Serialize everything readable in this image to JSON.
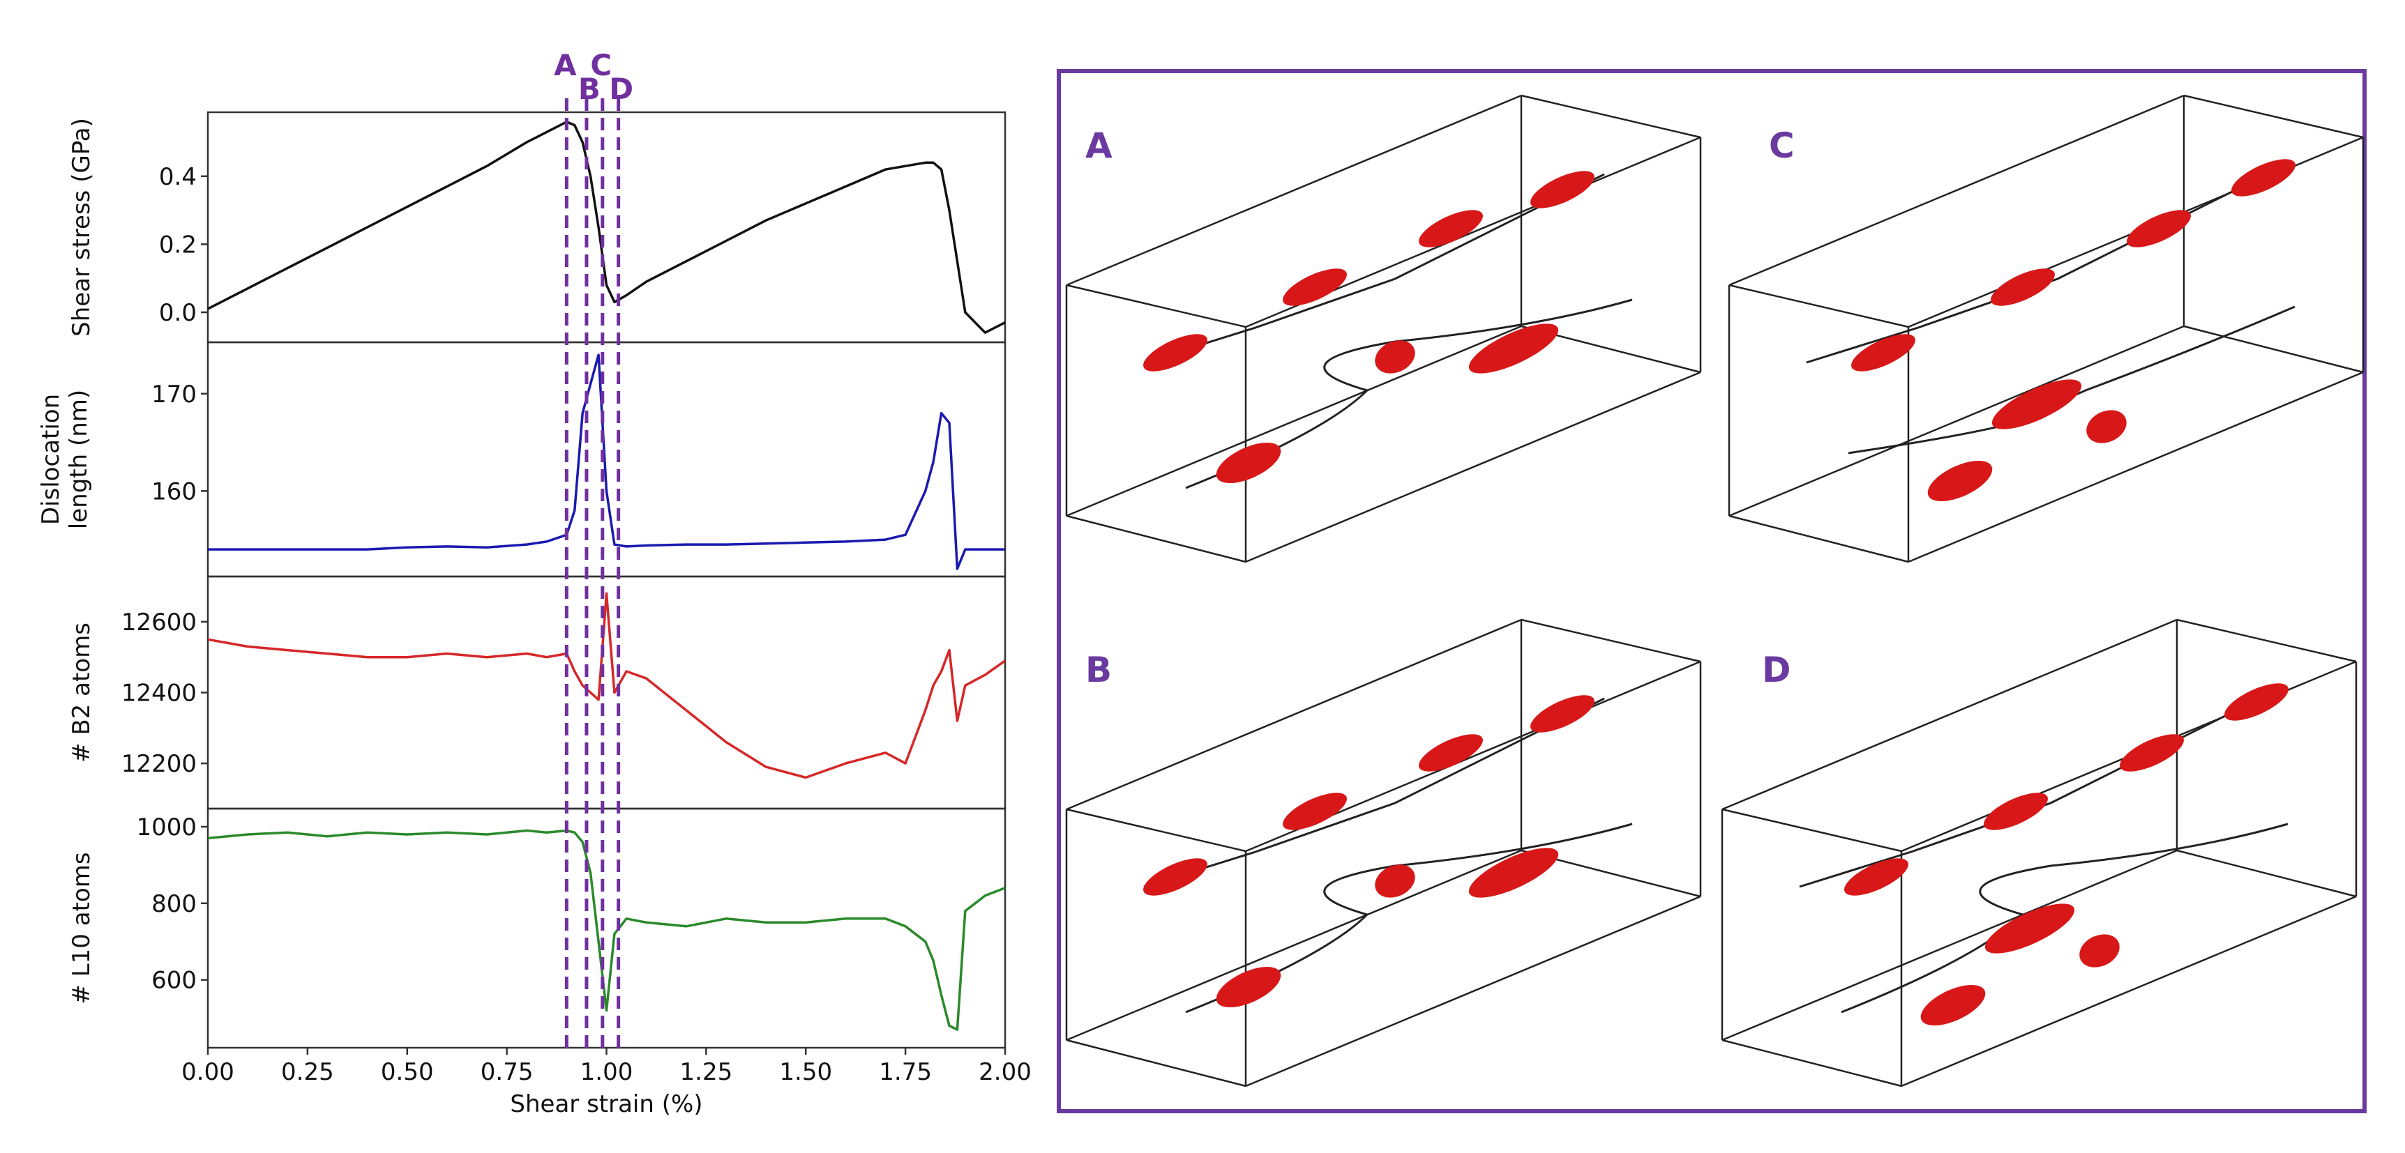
{
  "chart_data": [
    {
      "type": "line",
      "ylabel": [
        "Shear stress (GPa)"
      ],
      "xlim": [
        0,
        2
      ],
      "ylim": [
        -0.08,
        0.58
      ],
      "yticks": [
        {
          "value": 0,
          "label": "0.0"
        },
        0.2,
        0.4
      ],
      "x": [
        0,
        0.1,
        0.2,
        0.3,
        0.4,
        0.5,
        0.6,
        0.7,
        0.8,
        0.85,
        0.9,
        0.92,
        0.94,
        0.96,
        0.98,
        1.0,
        1.02,
        1.05,
        1.1,
        1.2,
        1.3,
        1.4,
        1.5,
        1.6,
        1.7,
        1.75,
        1.8,
        1.82,
        1.84,
        1.86,
        1.88,
        1.9,
        1.95,
        2.0
      ],
      "series": [
        {
          "color": "#111111",
          "values": [
            0.01,
            0.07,
            0.13,
            0.19,
            0.25,
            0.31,
            0.37,
            0.43,
            0.5,
            0.53,
            0.56,
            0.55,
            0.5,
            0.4,
            0.25,
            0.08,
            0.03,
            0.05,
            0.09,
            0.15,
            0.21,
            0.27,
            0.32,
            0.37,
            0.42,
            0.43,
            0.44,
            0.44,
            0.42,
            0.3,
            0.15,
            0.0,
            -0.06,
            -0.03
          ]
        }
      ],
      "markers": [
        {
          "label": "A",
          "x": 0.9
        },
        {
          "label": "B",
          "x": 0.95
        },
        {
          "label": "C",
          "x": 0.99
        },
        {
          "label": "D",
          "x": 1.03
        }
      ],
      "marker_color": "#7030a0"
    },
    {
      "type": "line",
      "ylabel": [
        "Dislocation",
        "length (nm)"
      ],
      "xlim": [
        0,
        2
      ],
      "ylim": [
        151.5,
        175
      ],
      "yticks": [
        160,
        170
      ],
      "x": [
        0,
        0.1,
        0.2,
        0.3,
        0.4,
        0.5,
        0.6,
        0.7,
        0.8,
        0.85,
        0.9,
        0.92,
        0.94,
        0.96,
        0.98,
        1.0,
        1.02,
        1.05,
        1.1,
        1.2,
        1.3,
        1.4,
        1.5,
        1.6,
        1.7,
        1.75,
        1.8,
        1.82,
        1.84,
        1.86,
        1.88,
        1.9,
        1.95,
        2.0
      ],
      "series": [
        {
          "color": "#1a1ab0",
          "values": [
            154,
            154,
            154,
            154,
            154,
            154.2,
            154.3,
            154.2,
            154.5,
            154.8,
            155.5,
            158,
            168,
            171,
            174,
            160,
            154.5,
            154.3,
            154.4,
            154.5,
            154.5,
            154.6,
            154.7,
            154.8,
            155,
            155.5,
            160,
            163,
            168,
            167,
            152,
            154,
            154,
            154
          ]
        }
      ]
    },
    {
      "type": "line",
      "ylabel": [
        "# B2 atoms"
      ],
      "xlim": [
        0,
        2
      ],
      "ylim": [
        12080,
        12720
      ],
      "yticks": [
        12200,
        12400,
        12600
      ],
      "x": [
        0,
        0.1,
        0.2,
        0.3,
        0.4,
        0.5,
        0.6,
        0.7,
        0.8,
        0.85,
        0.9,
        0.92,
        0.94,
        0.96,
        0.98,
        1.0,
        1.02,
        1.05,
        1.1,
        1.2,
        1.3,
        1.4,
        1.5,
        1.6,
        1.7,
        1.75,
        1.8,
        1.82,
        1.84,
        1.86,
        1.88,
        1.9,
        1.95,
        2.0
      ],
      "series": [
        {
          "color": "#d62728",
          "values": [
            12550,
            12530,
            12520,
            12510,
            12500,
            12500,
            12510,
            12500,
            12510,
            12500,
            12510,
            12460,
            12420,
            12400,
            12380,
            12680,
            12400,
            12460,
            12440,
            12350,
            12260,
            12190,
            12160,
            12200,
            12230,
            12200,
            12350,
            12420,
            12460,
            12520,
            12320,
            12420,
            12450,
            12490
          ]
        }
      ]
    },
    {
      "type": "line",
      "ylabel": [
        "# L10 atoms"
      ],
      "xlabel": "Shear strain (%)",
      "xlim": [
        0,
        2
      ],
      "ylim": [
        430,
        1040
      ],
      "yticks": [
        600,
        800,
        1000
      ],
      "xticks": [
        {
          "value": 0,
          "label": "0.00"
        },
        {
          "value": 0.25,
          "label": "0.25"
        },
        {
          "value": 0.5,
          "label": "0.50"
        },
        {
          "value": 0.75,
          "label": "0.75"
        },
        {
          "value": 1,
          "label": "1.00"
        },
        {
          "value": 1.25,
          "label": "1.25"
        },
        {
          "value": 1.5,
          "label": "1.50"
        },
        {
          "value": 1.75,
          "label": "1.75"
        },
        {
          "value": 2,
          "label": "2.00"
        }
      ],
      "x": [
        0,
        0.1,
        0.2,
        0.3,
        0.4,
        0.5,
        0.6,
        0.7,
        0.8,
        0.85,
        0.9,
        0.92,
        0.94,
        0.96,
        0.98,
        1.0,
        1.02,
        1.05,
        1.1,
        1.2,
        1.3,
        1.4,
        1.5,
        1.6,
        1.7,
        1.75,
        1.8,
        1.82,
        1.84,
        1.86,
        1.88,
        1.9,
        1.95,
        2.0
      ],
      "series": [
        {
          "color": "#2a8a2a",
          "values": [
            970,
            980,
            985,
            975,
            985,
            980,
            985,
            980,
            990,
            985,
            990,
            985,
            960,
            880,
            700,
            520,
            720,
            760,
            750,
            740,
            760,
            750,
            750,
            760,
            760,
            740,
            700,
            650,
            560,
            480,
            470,
            780,
            820,
            840
          ]
        }
      ]
    }
  ],
  "panels": [
    {
      "label": "A"
    },
    {
      "label": "C"
    },
    {
      "label": "B"
    },
    {
      "label": "D"
    }
  ]
}
